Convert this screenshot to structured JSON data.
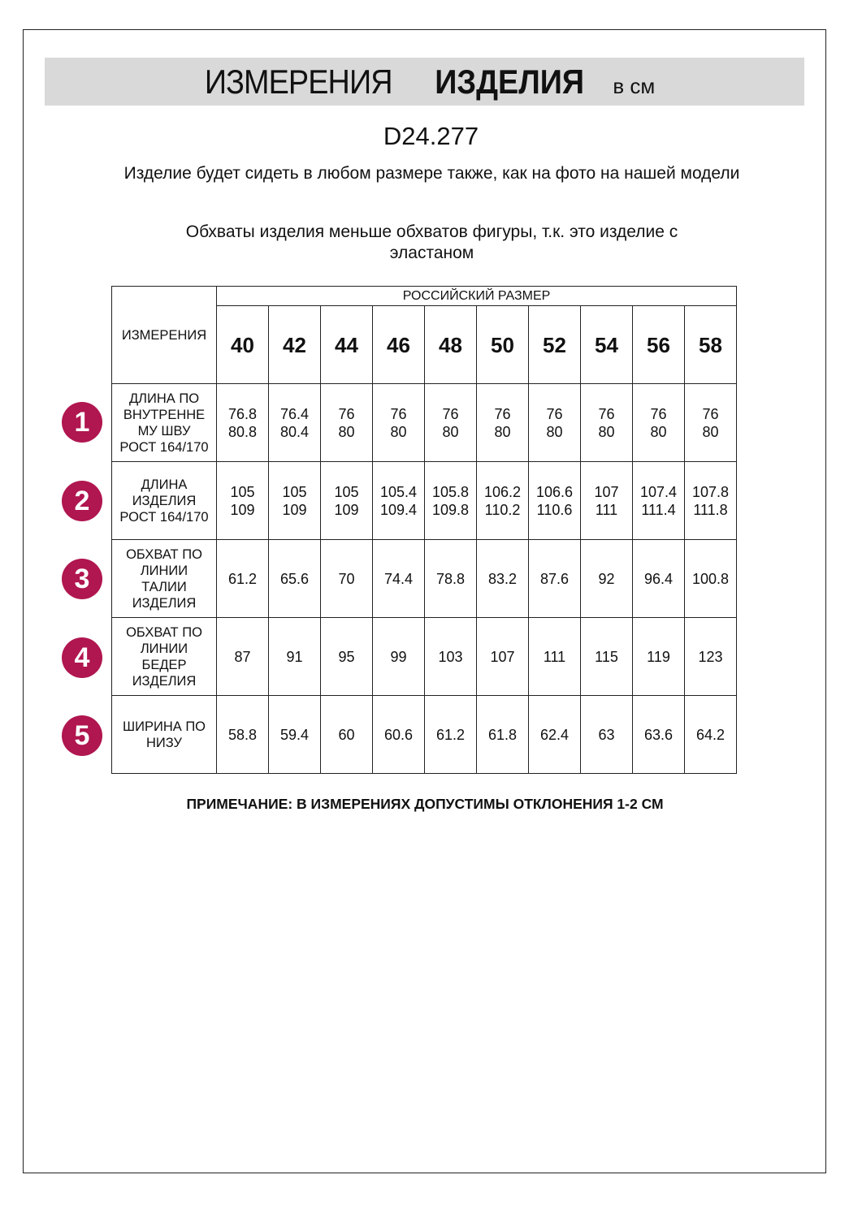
{
  "header": {
    "title_light": "ИЗМЕРЕНИЯ",
    "title_bold": "ИЗДЕЛИЯ",
    "unit": "в см"
  },
  "product_code": "D24.277",
  "notes": [
    "Изделие будет сидеть в любом размере также, как на фото на нашей модели",
    "Обхваты изделия меньше обхватов фигуры, т.к. это изделие с эластаном"
  ],
  "table": {
    "corner_label": "ИЗМЕРЕНИЯ",
    "group_header": "РОССИЙСКИЙ РАЗМЕР",
    "sizes": [
      "40",
      "42",
      "44",
      "46",
      "48",
      "50",
      "52",
      "54",
      "56",
      "58"
    ],
    "rows": [
      {
        "num": "1",
        "label": [
          "ДЛИНА ПО",
          "ВНУТРЕННЕ",
          "МУ ШВУ",
          "РОСТ 164/170"
        ],
        "values": [
          [
            "76.8",
            "80.8"
          ],
          [
            "76.4",
            "80.4"
          ],
          [
            "76",
            "80"
          ],
          [
            "76",
            "80"
          ],
          [
            "76",
            "80"
          ],
          [
            "76",
            "80"
          ],
          [
            "76",
            "80"
          ],
          [
            "76",
            "80"
          ],
          [
            "76",
            "80"
          ],
          [
            "76",
            "80"
          ]
        ]
      },
      {
        "num": "2",
        "label": [
          "ДЛИНА",
          "ИЗДЕЛИЯ",
          "РОСТ 164/170"
        ],
        "values": [
          [
            "105",
            "109"
          ],
          [
            "105",
            "109"
          ],
          [
            "105",
            "109"
          ],
          [
            "105.4",
            "109.4"
          ],
          [
            "105.8",
            "109.8"
          ],
          [
            "106.2",
            "110.2"
          ],
          [
            "106.6",
            "110.6"
          ],
          [
            "107",
            "111"
          ],
          [
            "107.4",
            "111.4"
          ],
          [
            "107.8",
            "111.8"
          ]
        ]
      },
      {
        "num": "3",
        "label": [
          "ОБХВАТ ПО",
          "ЛИНИИ",
          "ТАЛИИ",
          "ИЗДЕЛИЯ"
        ],
        "values": [
          [
            "61.2"
          ],
          [
            "65.6"
          ],
          [
            "70"
          ],
          [
            "74.4"
          ],
          [
            "78.8"
          ],
          [
            "83.2"
          ],
          [
            "87.6"
          ],
          [
            "92"
          ],
          [
            "96.4"
          ],
          [
            "100.8"
          ]
        ]
      },
      {
        "num": "4",
        "label": [
          "ОБХВАТ ПО",
          "ЛИНИИ",
          "БЕДЕР",
          "ИЗДЕЛИЯ"
        ],
        "values": [
          [
            "87"
          ],
          [
            "91"
          ],
          [
            "95"
          ],
          [
            "99"
          ],
          [
            "103"
          ],
          [
            "107"
          ],
          [
            "111"
          ],
          [
            "115"
          ],
          [
            "119"
          ],
          [
            "123"
          ]
        ]
      },
      {
        "num": "5",
        "label": [
          "ШИРИНА ПО",
          "НИЗУ"
        ],
        "values": [
          [
            "58.8"
          ],
          [
            "59.4"
          ],
          [
            "60"
          ],
          [
            "60.6"
          ],
          [
            "61.2"
          ],
          [
            "61.8"
          ],
          [
            "62.4"
          ],
          [
            "63"
          ],
          [
            "63.6"
          ],
          [
            "64.2"
          ]
        ]
      }
    ]
  },
  "footnote": "ПРИМЕЧАНИЕ: В ИЗМЕРЕНИЯХ ДОПУСТИМЫ ОТКЛОНЕНИЯ 1-2 СМ",
  "colors": {
    "accent": "#b0164f",
    "banner": "#d9d9d9"
  }
}
